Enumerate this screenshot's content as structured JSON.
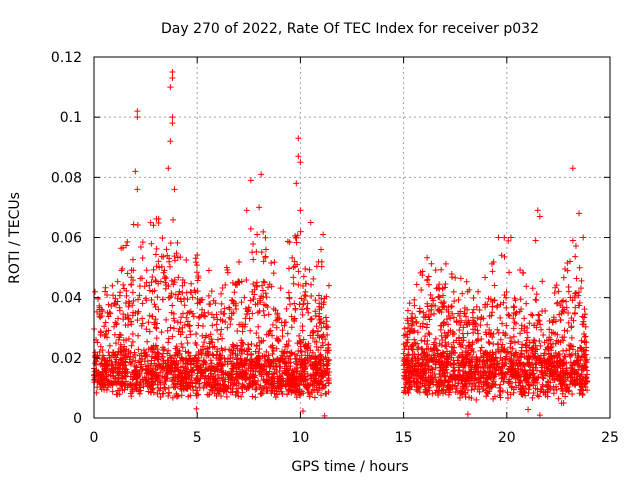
{
  "chart_data": {
    "type": "scatter",
    "title": "Day 270 of 2022, Rate Of TEC Index for receiver p032",
    "xlabel": "GPS time / hours",
    "ylabel": "ROTI / TECUs",
    "xlim": [
      0,
      25
    ],
    "ylim": [
      0,
      0.12
    ],
    "xticks": [
      0,
      5,
      10,
      15,
      20,
      25
    ],
    "yticks": [
      0,
      0.02,
      0.04,
      0.06,
      0.08,
      0.1,
      0.12
    ],
    "xtick_labels": [
      "0",
      "5",
      "10",
      "15",
      "20",
      "25"
    ],
    "ytick_labels": [
      "0",
      "0.02",
      "0.04",
      "0.06",
      "0.08",
      "0.1",
      "0.12"
    ],
    "grid": true,
    "series": [
      {
        "name": "ROTI p032",
        "color": "#ff0000",
        "marker": "plus",
        "segments": [
          {
            "x_start": 0.0,
            "x_end": 11.4
          },
          {
            "x_start": 15.0,
            "x_end": 23.9
          }
        ],
        "notable_points": [
          {
            "x": 2.1,
            "y": 0.102
          },
          {
            "x": 2.1,
            "y": 0.1
          },
          {
            "x": 2.0,
            "y": 0.082
          },
          {
            "x": 2.1,
            "y": 0.076
          },
          {
            "x": 3.8,
            "y": 0.115
          },
          {
            "x": 3.8,
            "y": 0.113
          },
          {
            "x": 3.7,
            "y": 0.11
          },
          {
            "x": 3.8,
            "y": 0.1
          },
          {
            "x": 3.8,
            "y": 0.098
          },
          {
            "x": 3.7,
            "y": 0.092
          },
          {
            "x": 3.6,
            "y": 0.083
          },
          {
            "x": 3.9,
            "y": 0.076
          },
          {
            "x": 7.6,
            "y": 0.079
          },
          {
            "x": 8.1,
            "y": 0.081
          },
          {
            "x": 7.4,
            "y": 0.069
          },
          {
            "x": 8.0,
            "y": 0.07
          },
          {
            "x": 9.9,
            "y": 0.093
          },
          {
            "x": 9.9,
            "y": 0.087
          },
          {
            "x": 10.0,
            "y": 0.085
          },
          {
            "x": 9.8,
            "y": 0.078
          },
          {
            "x": 10.0,
            "y": 0.069
          },
          {
            "x": 10.5,
            "y": 0.065
          },
          {
            "x": 11.1,
            "y": 0.061
          },
          {
            "x": 11.0,
            "y": 0.056
          },
          {
            "x": 21.5,
            "y": 0.069
          },
          {
            "x": 21.6,
            "y": 0.067
          },
          {
            "x": 23.2,
            "y": 0.083
          },
          {
            "x": 23.5,
            "y": 0.068
          },
          {
            "x": 23.7,
            "y": 0.06
          },
          {
            "x": 23.2,
            "y": 0.059
          },
          {
            "x": 21.4,
            "y": 0.059
          },
          {
            "x": 20.2,
            "y": 0.06
          },
          {
            "x": 19.6,
            "y": 0.06
          }
        ]
      }
    ]
  }
}
